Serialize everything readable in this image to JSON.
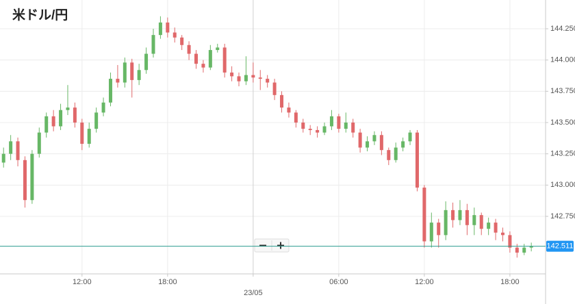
{
  "chart_data": {
    "type": "candlestick",
    "title": "米ドル/円",
    "x": [
      6.5,
      7,
      7.5,
      8,
      8.5,
      9,
      9.5,
      10,
      10.5,
      11,
      11.5,
      12,
      12.5,
      13,
      13.5,
      14,
      14.5,
      15,
      15.5,
      16,
      16.5,
      17,
      17.5,
      18,
      18.5,
      19,
      19.5,
      20,
      20.5,
      21,
      21.5,
      22,
      22.5,
      23,
      23.5,
      24,
      24.5,
      25,
      25.5,
      26,
      26.5,
      27,
      27.5,
      28,
      28.5,
      29,
      29.5,
      30,
      30.5,
      31,
      31.5,
      32,
      32.5,
      33,
      33.5,
      34,
      34.5,
      35,
      35.5,
      36,
      36.5,
      37,
      37.5,
      38,
      38.5,
      39,
      39.5,
      40,
      40.5,
      41,
      41.5,
      42,
      42.5,
      43,
      43.5
    ],
    "open": [
      143.18,
      143.25,
      143.35,
      143.2,
      142.88,
      143.25,
      143.42,
      143.55,
      143.47,
      143.6,
      143.62,
      143.5,
      143.33,
      143.45,
      143.58,
      143.66,
      143.85,
      143.82,
      143.98,
      143.84,
      143.92,
      144.05,
      144.2,
      144.3,
      144.22,
      144.18,
      144.12,
      144.05,
      143.97,
      143.94,
      144.08,
      144.1,
      143.9,
      143.87,
      143.83,
      143.88,
      143.86,
      143.85,
      143.82,
      143.72,
      143.62,
      143.58,
      143.5,
      143.45,
      143.44,
      143.42,
      143.47,
      143.55,
      143.45,
      143.5,
      143.42,
      143.3,
      143.35,
      143.4,
      143.28,
      143.2,
      143.3,
      143.35,
      143.42,
      142.98,
      142.55,
      142.7,
      142.6,
      142.8,
      142.72,
      142.8,
      142.68,
      142.76,
      142.65,
      142.7,
      142.62,
      142.6,
      142.5,
      142.46,
      142.5
    ],
    "high": [
      143.3,
      143.4,
      143.38,
      143.23,
      143.28,
      143.46,
      143.58,
      143.6,
      143.65,
      143.8,
      143.66,
      143.53,
      143.5,
      143.62,
      143.7,
      143.9,
      143.96,
      144.02,
      144.01,
      143.97,
      144.1,
      144.25,
      144.35,
      144.34,
      144.26,
      144.2,
      144.15,
      144.08,
      144.0,
      144.12,
      144.13,
      144.13,
      143.95,
      143.9,
      144.03,
      143.98,
      143.92,
      143.88,
      143.85,
      143.75,
      143.66,
      143.6,
      143.53,
      143.48,
      143.47,
      143.5,
      143.6,
      143.57,
      143.58,
      143.53,
      143.45,
      143.39,
      143.43,
      143.43,
      143.3,
      143.34,
      143.38,
      143.44,
      143.44,
      143.0,
      142.78,
      142.73,
      142.87,
      142.86,
      142.88,
      142.85,
      142.82,
      142.78,
      142.74,
      142.73,
      142.66,
      142.63,
      142.53,
      142.53,
      142.54
    ],
    "low": [
      143.14,
      143.2,
      143.15,
      142.82,
      142.85,
      143.22,
      143.38,
      143.43,
      143.44,
      143.56,
      143.46,
      143.28,
      143.3,
      143.42,
      143.55,
      143.63,
      143.78,
      143.78,
      143.7,
      143.8,
      143.89,
      144.02,
      144.17,
      144.18,
      144.14,
      144.08,
      144.0,
      143.93,
      143.9,
      143.92,
      144.06,
      143.86,
      143.83,
      143.79,
      143.8,
      143.82,
      143.76,
      143.78,
      143.68,
      143.58,
      143.54,
      143.46,
      143.42,
      143.4,
      143.38,
      143.4,
      143.44,
      143.42,
      143.42,
      143.38,
      143.26,
      143.27,
      143.32,
      143.24,
      143.16,
      143.18,
      143.27,
      143.32,
      142.95,
      142.5,
      142.5,
      142.5,
      142.56,
      142.66,
      142.68,
      142.6,
      142.6,
      142.6,
      142.6,
      142.56,
      142.55,
      142.46,
      142.42,
      142.44,
      142.47
    ],
    "close": [
      143.25,
      143.35,
      143.2,
      142.88,
      143.25,
      143.42,
      143.55,
      143.47,
      143.6,
      143.62,
      143.5,
      143.33,
      143.45,
      143.58,
      143.66,
      143.85,
      143.82,
      143.98,
      143.84,
      143.92,
      144.05,
      144.2,
      144.3,
      144.22,
      144.18,
      144.12,
      144.05,
      143.97,
      143.94,
      144.08,
      144.1,
      143.9,
      143.87,
      143.83,
      143.88,
      143.86,
      143.85,
      143.82,
      143.72,
      143.62,
      143.58,
      143.5,
      143.45,
      143.44,
      143.42,
      143.47,
      143.55,
      143.45,
      143.5,
      143.42,
      143.3,
      143.35,
      143.4,
      143.28,
      143.2,
      143.3,
      143.35,
      143.42,
      142.98,
      142.55,
      142.7,
      142.6,
      142.8,
      142.72,
      142.8,
      142.68,
      142.76,
      142.65,
      142.7,
      142.62,
      142.6,
      142.5,
      142.46,
      142.5,
      142.51
    ],
    "up_color": "#67b766",
    "down_color": "#e0686a",
    "xlim": [
      6.25,
      44.5
    ],
    "ylim": [
      142.29,
      144.48
    ],
    "xticks": [
      {
        "value": 12,
        "label": "12:00"
      },
      {
        "value": 18,
        "label": "18:00"
      },
      {
        "value": 24,
        "label": "23/05"
      },
      {
        "value": 30,
        "label": "06:00"
      },
      {
        "value": 36,
        "label": "12:00"
      },
      {
        "value": 42,
        "label": "18:00"
      }
    ],
    "yticks": [
      {
        "value": 142.75,
        "label": "142.750"
      },
      {
        "value": 143,
        "label": "143.000"
      },
      {
        "value": 143.25,
        "label": "143.250"
      },
      {
        "value": 143.5,
        "label": "143.500"
      },
      {
        "value": 143.75,
        "label": "143.750"
      },
      {
        "value": 144,
        "label": "144.000"
      },
      {
        "value": 144.25,
        "label": "144.250"
      }
    ],
    "grid": true,
    "last_price": {
      "value": 142.511,
      "label": "142.511",
      "color": "#2a9d8f",
      "label_color": "#2196f3"
    }
  }
}
